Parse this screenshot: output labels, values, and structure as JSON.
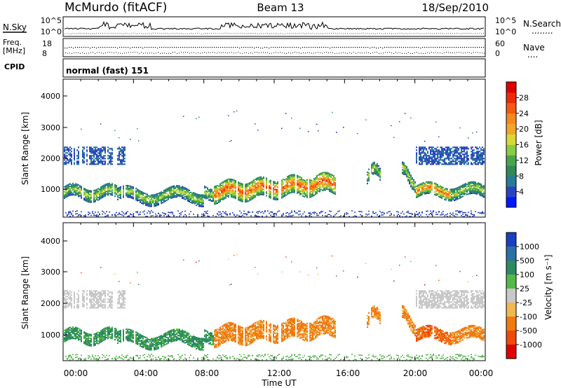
{
  "header": {
    "station": "McMurdo (fitACF)",
    "beam": "Beam 13",
    "date": "18/Sep/2010"
  },
  "sky_panel": {
    "left_label": "N.Sky",
    "right_label": "N.Search",
    "right_key": "........",
    "left_ticks": [
      "10^5",
      "10^0"
    ],
    "right_ticks": [
      "10^5",
      "10^0"
    ]
  },
  "freq_panel": {
    "left_label_top": "Freq.",
    "left_label_unit": "[MHz]",
    "left_ticks": [
      "18",
      "8"
    ],
    "right_ticks": [
      "60",
      "0"
    ],
    "right_label": "Nave",
    "right_key": "...."
  },
  "cpid": {
    "label": "CPID",
    "value": "normal (fast) 151"
  },
  "chart_data": [
    {
      "type": "heatmap",
      "name": "power",
      "ylabel": "Slant Range [km]",
      "ylim": [
        180,
        4600
      ],
      "yticks": [
        "1000",
        "2000",
        "3000",
        "4000"
      ],
      "xlim": [
        0,
        24
      ],
      "colorbar": {
        "title": "Power [dB]",
        "labels": [
          "4",
          "8",
          "12",
          "16",
          "20",
          "24",
          "28"
        ],
        "range": [
          0,
          32
        ],
        "colors": [
          "#0018ff",
          "#2a44c0",
          "#2a7a9a",
          "#2f8a58",
          "#4aa44a",
          "#88cc44",
          "#d8d838",
          "#f3a52a",
          "#f38a1e",
          "#f35a12",
          "#ee2a0a",
          "#e00000"
        ]
      }
    },
    {
      "type": "heatmap",
      "name": "velocity",
      "ylabel": "Slant Range [km]",
      "ylim": [
        180,
        4600
      ],
      "yticks": [
        "1000",
        "2000",
        "3000",
        "4000"
      ],
      "xlim": [
        0,
        24
      ],
      "colorbar": {
        "title": "Velocity [m s⁻¹]",
        "labels": [
          "1000",
          "500",
          "100",
          "25",
          "-25",
          "-100",
          "-500",
          "-1000"
        ],
        "colors": [
          "#1a3fc0",
          "#2b6fa6",
          "#2d8a62",
          "#55b84a",
          "#c8c8c8",
          "#f0b850",
          "#f07a14",
          "#ee4a0a",
          "#e00000"
        ]
      }
    }
  ],
  "x_axis": {
    "ticks": [
      "00:00",
      "04:00",
      "08:00",
      "12:00",
      "16:00",
      "20:00",
      "00:00"
    ],
    "label": "Time UT"
  }
}
